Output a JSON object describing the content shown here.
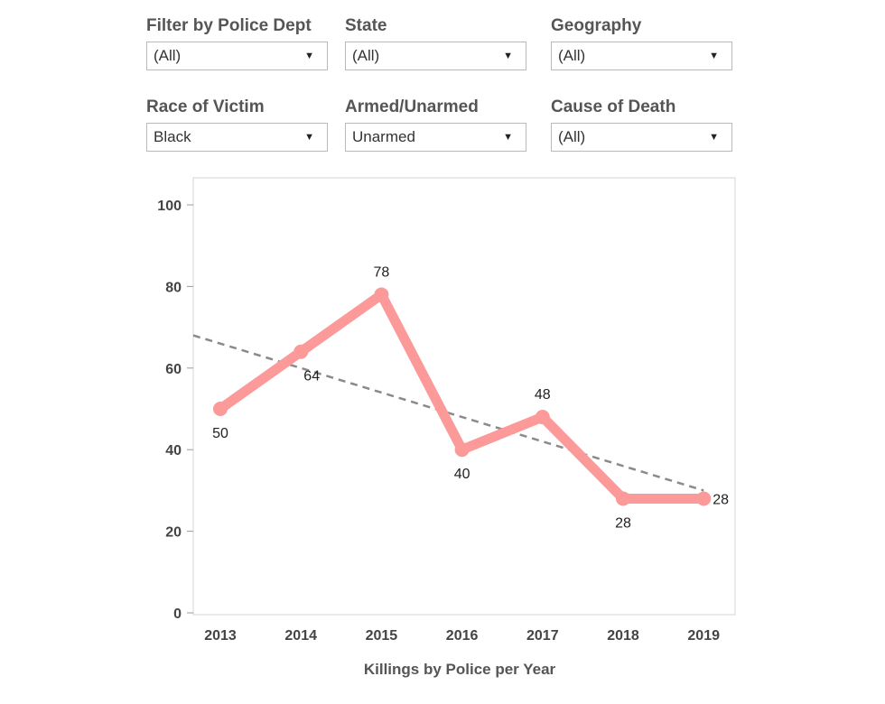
{
  "filters": [
    {
      "label": "Filter by Police Dept",
      "value": "(All)"
    },
    {
      "label": "State",
      "value": "(All)"
    },
    {
      "label": "Geography",
      "value": "(All)"
    },
    {
      "label": "Race of Victim",
      "value": "Black"
    },
    {
      "label": "Armed/Unarmed",
      "value": "Unarmed"
    },
    {
      "label": "Cause of Death",
      "value": "(All)"
    }
  ],
  "chart_data": {
    "type": "line",
    "x": [
      "2013",
      "2014",
      "2015",
      "2016",
      "2017",
      "2018",
      "2019"
    ],
    "values": [
      50,
      64,
      78,
      40,
      48,
      28,
      28
    ],
    "data_labels": [
      "50",
      "64",
      "78",
      "40",
      "48",
      "28",
      "28"
    ],
    "title": "",
    "xlabel": "Killings by Police per Year",
    "ylabel": "",
    "ylim": [
      0,
      100
    ],
    "yticks": [
      0,
      20,
      40,
      60,
      80,
      100
    ],
    "trend_line": {
      "style": "dashed",
      "color": "#8a8a8a"
    },
    "line_color": "#fb9a99",
    "grid": false,
    "legend": "none"
  }
}
